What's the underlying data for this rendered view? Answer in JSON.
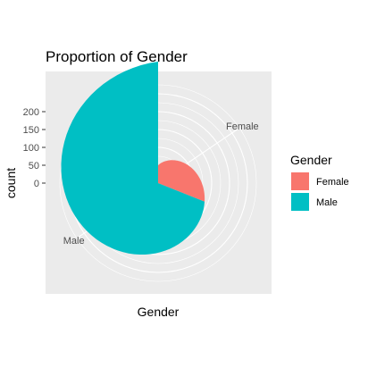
{
  "chart_data": {
    "type": "pie",
    "coord": "polar",
    "title": "Proportion of Gender",
    "xlabel": "Gender",
    "ylabel": "count",
    "categories": [
      "Female",
      "Male"
    ],
    "values": [
      90,
      200
    ],
    "colors": [
      "#F8766D",
      "#00BFC4"
    ],
    "ylim": [
      0,
      200
    ],
    "y_ticks": [
      0,
      50,
      100,
      150,
      200
    ],
    "theta_labels": [
      "Female",
      "Male"
    ],
    "grid": true,
    "background": "#EBEBEB",
    "legend": {
      "title": "Gender",
      "position": "right",
      "entries": [
        "Female",
        "Male"
      ]
    }
  }
}
